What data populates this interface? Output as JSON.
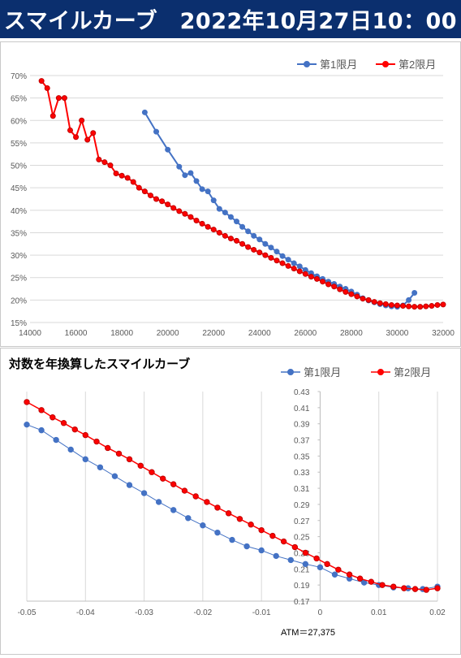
{
  "header": {
    "title": "スマイルカーブ　2022年10月27日10：00",
    "background": "#0b2f6e",
    "color": "#ffffff"
  },
  "chart_data": [
    {
      "type": "line",
      "title": "",
      "xlim": [
        14000,
        32000
      ],
      "ylim": [
        0.15,
        0.7
      ],
      "xticks": [
        "14000",
        "16000",
        "18000",
        "20000",
        "22000",
        "24000",
        "26000",
        "28000",
        "30000",
        "32000"
      ],
      "yticks": [
        "15%",
        "20%",
        "25%",
        "30%",
        "35%",
        "40%",
        "45%",
        "50%",
        "55%",
        "60%",
        "65%",
        "70%"
      ],
      "legend_position": "top-right",
      "grid": "horizontal",
      "series": [
        {
          "name": "第1限月",
          "color": "#4472c4",
          "points": [
            [
              19000,
              0.618
            ],
            [
              19500,
              0.575
            ],
            [
              20000,
              0.535
            ],
            [
              20500,
              0.497
            ],
            [
              20750,
              0.478
            ],
            [
              21000,
              0.483
            ],
            [
              21250,
              0.465
            ],
            [
              21500,
              0.447
            ],
            [
              21750,
              0.442
            ],
            [
              22000,
              0.422
            ],
            [
              22250,
              0.403
            ],
            [
              22500,
              0.395
            ],
            [
              22750,
              0.385
            ],
            [
              23000,
              0.375
            ],
            [
              23250,
              0.363
            ],
            [
              23500,
              0.353
            ],
            [
              23750,
              0.343
            ],
            [
              24000,
              0.335
            ],
            [
              24250,
              0.325
            ],
            [
              24500,
              0.317
            ],
            [
              24750,
              0.308
            ],
            [
              25000,
              0.298
            ],
            [
              25250,
              0.29
            ],
            [
              25500,
              0.282
            ],
            [
              25750,
              0.275
            ],
            [
              26000,
              0.267
            ],
            [
              26250,
              0.26
            ],
            [
              26500,
              0.253
            ],
            [
              26750,
              0.247
            ],
            [
              27000,
              0.241
            ],
            [
              27250,
              0.236
            ],
            [
              27500,
              0.23
            ],
            [
              27750,
              0.225
            ],
            [
              28000,
              0.219
            ],
            [
              28250,
              0.212
            ],
            [
              28500,
              0.204
            ],
            [
              28750,
              0.199
            ],
            [
              29000,
              0.195
            ],
            [
              29250,
              0.191
            ],
            [
              29500,
              0.188
            ],
            [
              29750,
              0.186
            ],
            [
              30000,
              0.185
            ],
            [
              30250,
              0.188
            ],
            [
              30500,
              0.2
            ],
            [
              30750,
              0.216
            ]
          ]
        },
        {
          "name": "第2限月",
          "color": "#ff0000",
          "points": [
            [
              14500,
              0.688
            ],
            [
              14750,
              0.672
            ],
            [
              15000,
              0.61
            ],
            [
              15250,
              0.65
            ],
            [
              15500,
              0.65
            ],
            [
              15750,
              0.578
            ],
            [
              16000,
              0.563
            ],
            [
              16250,
              0.6
            ],
            [
              16500,
              0.557
            ],
            [
              16750,
              0.572
            ],
            [
              17000,
              0.513
            ],
            [
              17250,
              0.507
            ],
            [
              17500,
              0.5
            ],
            [
              17750,
              0.482
            ],
            [
              18000,
              0.477
            ],
            [
              18250,
              0.472
            ],
            [
              18500,
              0.463
            ],
            [
              18750,
              0.45
            ],
            [
              19000,
              0.442
            ],
            [
              19250,
              0.433
            ],
            [
              19500,
              0.425
            ],
            [
              19750,
              0.42
            ],
            [
              20000,
              0.413
            ],
            [
              20250,
              0.405
            ],
            [
              20500,
              0.398
            ],
            [
              20750,
              0.392
            ],
            [
              21000,
              0.385
            ],
            [
              21250,
              0.377
            ],
            [
              21500,
              0.37
            ],
            [
              21750,
              0.363
            ],
            [
              22000,
              0.357
            ],
            [
              22250,
              0.35
            ],
            [
              22500,
              0.343
            ],
            [
              22750,
              0.337
            ],
            [
              23000,
              0.332
            ],
            [
              23250,
              0.325
            ],
            [
              23500,
              0.318
            ],
            [
              23750,
              0.312
            ],
            [
              24000,
              0.306
            ],
            [
              24250,
              0.3
            ],
            [
              24500,
              0.294
            ],
            [
              24750,
              0.288
            ],
            [
              25000,
              0.282
            ],
            [
              25250,
              0.276
            ],
            [
              25500,
              0.27
            ],
            [
              25750,
              0.264
            ],
            [
              26000,
              0.258
            ],
            [
              26250,
              0.252
            ],
            [
              26500,
              0.247
            ],
            [
              26750,
              0.241
            ],
            [
              27000,
              0.235
            ],
            [
              27250,
              0.23
            ],
            [
              27500,
              0.224
            ],
            [
              27750,
              0.218
            ],
            [
              28000,
              0.213
            ],
            [
              28250,
              0.208
            ],
            [
              28500,
              0.203
            ],
            [
              28750,
              0.2
            ],
            [
              29000,
              0.196
            ],
            [
              29250,
              0.193
            ],
            [
              29500,
              0.191
            ],
            [
              29750,
              0.189
            ],
            [
              30000,
              0.188
            ],
            [
              30250,
              0.187
            ],
            [
              30500,
              0.186
            ],
            [
              30750,
              0.185
            ],
            [
              31000,
              0.185
            ],
            [
              31250,
              0.186
            ],
            [
              31500,
              0.187
            ],
            [
              31750,
              0.189
            ],
            [
              32000,
              0.19
            ]
          ]
        }
      ]
    },
    {
      "type": "line",
      "title": "対数を年換算したスマイルカーブ",
      "xlim": [
        -0.05,
        0.02
      ],
      "ylim": [
        0.17,
        0.43
      ],
      "xticks": [
        "-0.05",
        "-0.04",
        "-0.03",
        "-0.02",
        "-0.01",
        "0",
        "0.01",
        "0.02"
      ],
      "yticks": [
        "0.17",
        "0.19",
        "0.21",
        "0.23",
        "0.25",
        "0.27",
        "0.29",
        "0.31",
        "0.33",
        "0.35",
        "0.37",
        "0.39",
        "0.41",
        "0.43"
      ],
      "annotation": "ATM＝27,375",
      "legend_position": "top-right",
      "grid": "vertical",
      "series": [
        {
          "name": "第1限月",
          "color": "#4472c4",
          "points": [
            [
              -0.05,
              0.389
            ],
            [
              -0.0475,
              0.382
            ],
            [
              -0.045,
              0.37
            ],
            [
              -0.0425,
              0.358
            ],
            [
              -0.04,
              0.346
            ],
            [
              -0.0375,
              0.336
            ],
            [
              -0.035,
              0.325
            ],
            [
              -0.0325,
              0.314
            ],
            [
              -0.03,
              0.304
            ],
            [
              -0.0275,
              0.293
            ],
            [
              -0.025,
              0.283
            ],
            [
              -0.0225,
              0.273
            ],
            [
              -0.02,
              0.264
            ],
            [
              -0.0175,
              0.255
            ],
            [
              -0.015,
              0.246
            ],
            [
              -0.0125,
              0.238
            ],
            [
              -0.01,
              0.233
            ],
            [
              -0.0075,
              0.226
            ],
            [
              -0.005,
              0.221
            ],
            [
              -0.0025,
              0.216
            ],
            [
              0,
              0.212
            ],
            [
              0.0025,
              0.203
            ],
            [
              0.005,
              0.198
            ],
            [
              0.0075,
              0.193
            ],
            [
              0.01,
              0.19
            ],
            [
              0.0125,
              0.187
            ],
            [
              0.015,
              0.186
            ],
            [
              0.0175,
              0.185
            ],
            [
              0.02,
              0.188
            ]
          ]
        },
        {
          "name": "第2限月",
          "color": "#ff0000",
          "points": [
            [
              -0.05,
              0.417
            ],
            [
              -0.0475,
              0.407
            ],
            [
              -0.0456,
              0.398
            ],
            [
              -0.0437,
              0.391
            ],
            [
              -0.0418,
              0.383
            ],
            [
              -0.04,
              0.376
            ],
            [
              -0.0381,
              0.368
            ],
            [
              -0.0362,
              0.36
            ],
            [
              -0.0343,
              0.353
            ],
            [
              -0.0325,
              0.346
            ],
            [
              -0.0306,
              0.338
            ],
            [
              -0.0287,
              0.33
            ],
            [
              -0.0268,
              0.322
            ],
            [
              -0.025,
              0.315
            ],
            [
              -0.0231,
              0.307
            ],
            [
              -0.0212,
              0.3
            ],
            [
              -0.0193,
              0.293
            ],
            [
              -0.0175,
              0.286
            ],
            [
              -0.0156,
              0.279
            ],
            [
              -0.0137,
              0.272
            ],
            [
              -0.0118,
              0.265
            ],
            [
              -0.01,
              0.258
            ],
            [
              -0.0081,
              0.251
            ],
            [
              -0.0062,
              0.244
            ],
            [
              -0.0043,
              0.237
            ],
            [
              -0.0025,
              0.23
            ],
            [
              -0.0006,
              0.223
            ],
            [
              0.0012,
              0.216
            ],
            [
              0.0031,
              0.209
            ],
            [
              0.005,
              0.203
            ],
            [
              0.0068,
              0.198
            ],
            [
              0.0087,
              0.194
            ],
            [
              0.0106,
              0.19
            ],
            [
              0.0125,
              0.188
            ],
            [
              0.0143,
              0.186
            ],
            [
              0.0162,
              0.185
            ],
            [
              0.0181,
              0.184
            ],
            [
              0.02,
              0.186
            ]
          ]
        }
      ]
    }
  ]
}
